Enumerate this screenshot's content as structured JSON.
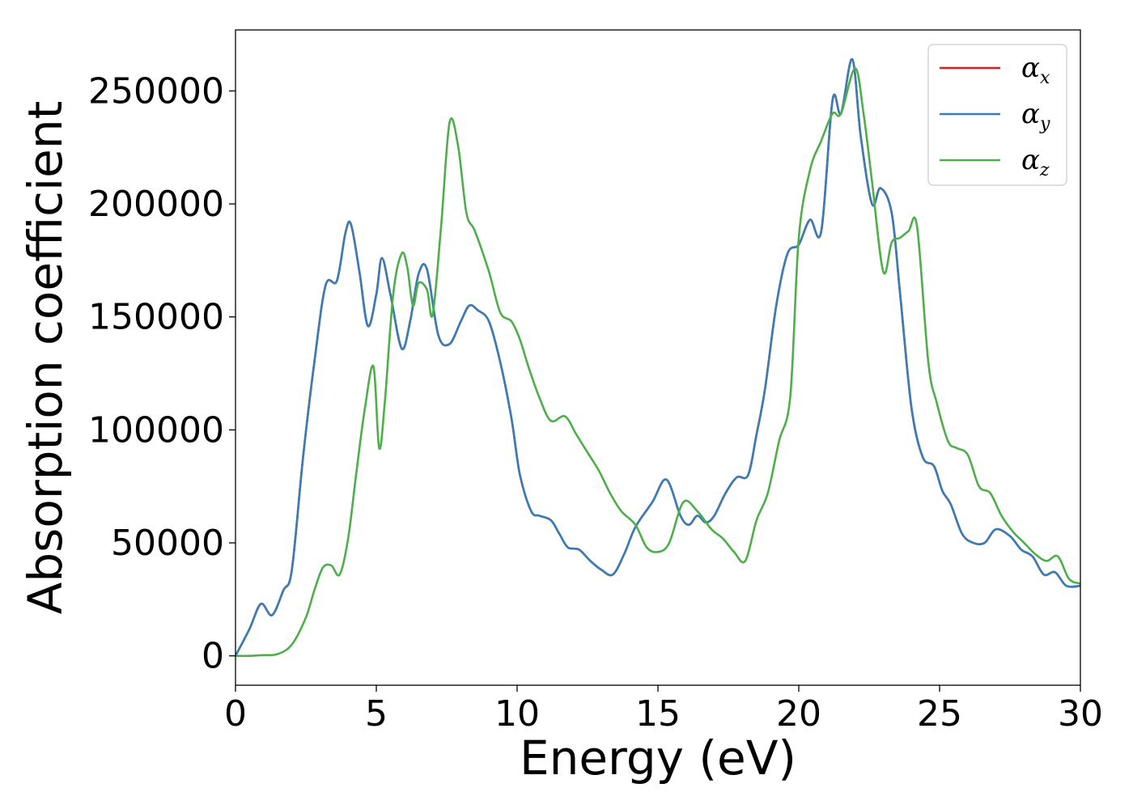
{
  "chart_data": {
    "type": "line",
    "xlabel": "Energy (eV)",
    "ylabel": "Absorption coefficient",
    "xlim": [
      0,
      30
    ],
    "ylim": [
      -13000,
      277000
    ],
    "xticks": [
      0,
      5,
      10,
      15,
      20,
      25,
      30
    ],
    "xtick_labels": [
      "0",
      "5",
      "10",
      "15",
      "20",
      "25",
      "30"
    ],
    "yticks": [
      0,
      50000,
      100000,
      150000,
      200000,
      250000
    ],
    "ytick_labels": [
      "0",
      "50000",
      "100000",
      "150000",
      "200000",
      "250000"
    ],
    "grid": false,
    "legend_position": "top-right",
    "series": [
      {
        "name": "α_x",
        "base": "α",
        "sub": "x",
        "color": "#e41a1c",
        "x": [
          0,
          0.5,
          0.9,
          1.3,
          1.7,
          2.0,
          2.4,
          2.8,
          3.2,
          3.6,
          3.9,
          4.1,
          4.4,
          4.7,
          5.0,
          5.2,
          5.5,
          5.9,
          6.2,
          6.5,
          6.8,
          7.2,
          7.6,
          8.0,
          8.3,
          8.6,
          9.0,
          9.4,
          9.8,
          10.1,
          10.5,
          10.8,
          11.2,
          11.5,
          11.8,
          12.2,
          12.6,
          13.0,
          13.4,
          13.8,
          14.2,
          14.8,
          15.3,
          15.8,
          16.1,
          16.4,
          16.7,
          17.0,
          17.4,
          17.8,
          18.2,
          18.5,
          18.8,
          19.2,
          19.6,
          20.0,
          20.4,
          20.8,
          21.2,
          21.5,
          21.9,
          22.2,
          22.6,
          22.9,
          23.3,
          23.6,
          24.0,
          24.4,
          24.8,
          25.1,
          25.4,
          25.8,
          26.2,
          26.6,
          27.0,
          27.5,
          27.9,
          28.3,
          28.7,
          29.1,
          29.5,
          30.0
        ],
        "y": [
          0,
          12000,
          23000,
          18000,
          29000,
          38000,
          88000,
          130000,
          164000,
          166000,
          187000,
          191000,
          170000,
          146000,
          160000,
          176000,
          160000,
          136000,
          148000,
          169000,
          171000,
          142000,
          138000,
          148000,
          155000,
          153000,
          148000,
          130000,
          105000,
          80000,
          64000,
          62000,
          60000,
          54000,
          48000,
          47000,
          42000,
          38000,
          36000,
          45000,
          57000,
          68000,
          78000,
          62000,
          58000,
          62000,
          59000,
          62000,
          72000,
          79000,
          80000,
          98000,
          118000,
          155000,
          178000,
          182000,
          193000,
          188000,
          246000,
          240000,
          264000,
          230000,
          200000,
          207000,
          196000,
          160000,
          110000,
          88000,
          84000,
          73000,
          67000,
          54000,
          50000,
          50000,
          56000,
          53000,
          47000,
          44000,
          36000,
          37000,
          31000,
          31000
        ]
      },
      {
        "name": "α_y",
        "base": "α",
        "sub": "y",
        "color": "#377eb8",
        "x": [
          0,
          0.5,
          0.9,
          1.3,
          1.7,
          2.0,
          2.4,
          2.8,
          3.2,
          3.6,
          3.9,
          4.1,
          4.4,
          4.7,
          5.0,
          5.2,
          5.5,
          5.9,
          6.2,
          6.5,
          6.8,
          7.2,
          7.6,
          8.0,
          8.3,
          8.6,
          9.0,
          9.4,
          9.8,
          10.1,
          10.5,
          10.8,
          11.2,
          11.5,
          11.8,
          12.2,
          12.6,
          13.0,
          13.4,
          13.8,
          14.2,
          14.8,
          15.3,
          15.8,
          16.1,
          16.4,
          16.7,
          17.0,
          17.4,
          17.8,
          18.2,
          18.5,
          18.8,
          19.2,
          19.6,
          20.0,
          20.4,
          20.8,
          21.2,
          21.5,
          21.9,
          22.2,
          22.6,
          22.9,
          23.3,
          23.6,
          24.0,
          24.4,
          24.8,
          25.1,
          25.4,
          25.8,
          26.2,
          26.6,
          27.0,
          27.5,
          27.9,
          28.3,
          28.7,
          29.1,
          29.5,
          30.0
        ],
        "y": [
          0,
          12000,
          23000,
          18000,
          29000,
          38000,
          88000,
          130000,
          164000,
          166000,
          187000,
          191000,
          170000,
          146000,
          160000,
          176000,
          160000,
          136000,
          148000,
          169000,
          171000,
          142000,
          138000,
          148000,
          155000,
          153000,
          148000,
          130000,
          105000,
          80000,
          64000,
          62000,
          60000,
          54000,
          48000,
          47000,
          42000,
          38000,
          36000,
          45000,
          57000,
          68000,
          78000,
          62000,
          58000,
          62000,
          59000,
          62000,
          72000,
          79000,
          80000,
          98000,
          118000,
          155000,
          178000,
          182000,
          193000,
          188000,
          246000,
          240000,
          264000,
          230000,
          200000,
          207000,
          196000,
          160000,
          110000,
          88000,
          84000,
          73000,
          67000,
          54000,
          50000,
          50000,
          56000,
          53000,
          47000,
          44000,
          36000,
          37000,
          31000,
          31000
        ]
      },
      {
        "name": "α_z",
        "base": "α",
        "sub": "z",
        "color": "#4daf4a",
        "x": [
          0,
          0.5,
          1.0,
          1.5,
          2.0,
          2.5,
          2.8,
          3.1,
          3.4,
          3.7,
          4.0,
          4.3,
          4.6,
          4.9,
          5.1,
          5.3,
          5.6,
          5.9,
          6.1,
          6.3,
          6.5,
          6.8,
          7.0,
          7.3,
          7.6,
          7.9,
          8.2,
          8.5,
          9.0,
          9.4,
          9.8,
          10.1,
          10.4,
          10.8,
          11.2,
          11.7,
          12.1,
          12.5,
          12.9,
          13.3,
          13.7,
          14.2,
          14.6,
          15.0,
          15.4,
          15.9,
          16.4,
          16.9,
          17.3,
          17.7,
          18.1,
          18.5,
          18.9,
          19.3,
          19.7,
          20.0,
          20.4,
          20.8,
          21.2,
          21.5,
          22.0,
          22.3,
          22.6,
          23.0,
          23.3,
          23.6,
          23.9,
          24.2,
          24.6,
          24.9,
          25.3,
          25.6,
          26.0,
          26.4,
          26.8,
          27.2,
          27.6,
          28.0,
          28.4,
          28.8,
          29.2,
          29.6,
          30.0
        ],
        "y": [
          0,
          0,
          300,
          800,
          5000,
          17000,
          29000,
          39000,
          40000,
          36000,
          52000,
          82000,
          110000,
          128000,
          92000,
          112000,
          160000,
          178000,
          172000,
          155000,
          165000,
          162000,
          151000,
          190000,
          236000,
          226000,
          196000,
          188000,
          170000,
          152000,
          148000,
          140000,
          128000,
          114000,
          104000,
          106000,
          98000,
          90000,
          82000,
          72000,
          64000,
          58000,
          48000,
          46000,
          50000,
          68000,
          64000,
          56000,
          52000,
          46000,
          42000,
          60000,
          72000,
          95000,
          115000,
          185000,
          215000,
          228000,
          240000,
          240000,
          260000,
          240000,
          210000,
          170000,
          183000,
          185000,
          188000,
          190000,
          130000,
          112000,
          95000,
          92000,
          89000,
          75000,
          72000,
          62000,
          55000,
          50000,
          45000,
          42000,
          44000,
          34000,
          32000
        ]
      }
    ]
  }
}
